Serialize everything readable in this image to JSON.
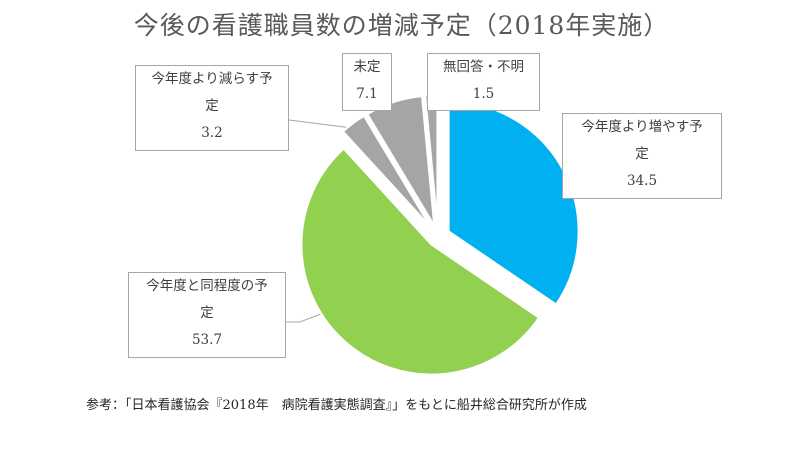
{
  "chart_data": {
    "type": "pie",
    "title": "今後の看護職員数の増減予定（2018年実施）",
    "slices": [
      {
        "label": "今年度より増やす予定",
        "value": 34.5,
        "color": "#00b0f0"
      },
      {
        "label": "今年度と同程度の予定",
        "value": 53.7,
        "color": "#92d050"
      },
      {
        "label": "今年度より減らす予定",
        "value": 3.2,
        "color": "#a5a5a5"
      },
      {
        "label": "未定",
        "value": 7.1,
        "color": "#a5a5a5"
      },
      {
        "label": "無回答・不明",
        "value": 1.5,
        "color": "#a5a5a5"
      }
    ],
    "callouts": [
      {
        "line1": "今年度より増やす予",
        "line2": "定",
        "value": "34.5"
      },
      {
        "line1": "今年度と同程度の予",
        "line2": "定",
        "value": "53.7"
      },
      {
        "line1": "今年度より減らす予",
        "line2": "定",
        "value": "3.2"
      },
      {
        "line1": "未定",
        "line2": "",
        "value": "7.1"
      },
      {
        "line1": "無回答・不明",
        "line2": "",
        "value": "1.5"
      }
    ],
    "legend": "none (data callouts)"
  },
  "note": "参考：「日本看護協会『2018年　病院看護実態調査』」をもとに船井総合研究所が作成"
}
